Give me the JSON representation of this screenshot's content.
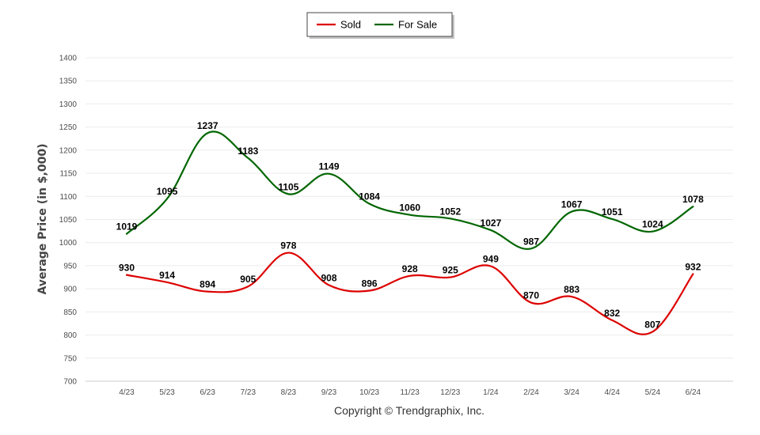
{
  "chart_data": {
    "type": "line",
    "title": "",
    "xlabel": "",
    "ylabel": "Average Price (in $,000)",
    "ylim": [
      700,
      1400
    ],
    "yticks": [
      700,
      750,
      800,
      850,
      900,
      950,
      1000,
      1050,
      1100,
      1150,
      1200,
      1250,
      1300,
      1350,
      1400
    ],
    "categories": [
      "4/23",
      "5/23",
      "6/23",
      "7/23",
      "8/23",
      "9/23",
      "10/23",
      "11/23",
      "12/23",
      "1/24",
      "2/24",
      "3/24",
      "4/24",
      "5/24",
      "6/24"
    ],
    "series": [
      {
        "name": "Sold",
        "color": "#dd0000",
        "values": [
          930,
          914,
          894,
          905,
          978,
          908,
          896,
          928,
          925,
          949,
          870,
          883,
          832,
          807,
          932
        ]
      },
      {
        "name": "For Sale",
        "color": "#006600",
        "values": [
          1019,
          1095,
          1237,
          1183,
          1105,
          1149,
          1084,
          1060,
          1052,
          1027,
          987,
          1067,
          1051,
          1024,
          1078
        ]
      }
    ],
    "grid": true,
    "legend_position": "top-center"
  },
  "footer": {
    "copyright": "Copyright © Trendgraphix, Inc."
  }
}
